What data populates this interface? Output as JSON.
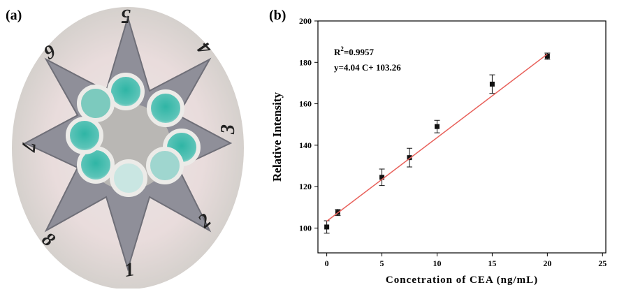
{
  "panel_labels": {
    "a": "(a)",
    "b": "(b)"
  },
  "photo": {
    "well_numbers": [
      "1",
      "2",
      "3",
      "4",
      "5",
      "6",
      "7",
      "8"
    ]
  },
  "chart_data": {
    "type": "scatter",
    "x_label": "Concetration of CEA (ng/mL)",
    "y_label": "Relative Intensity",
    "r_squared": {
      "symbol": "R",
      "superscript": "2",
      "value_text": "=0.9957"
    },
    "equation": "y=4.04 C+ 103.26",
    "x": [
      0,
      1,
      5,
      7.5,
      10,
      15,
      20
    ],
    "series": [
      {
        "color": "#111111",
        "values": [
          100.5,
          107.5,
          124.5,
          134,
          149,
          169.5,
          183
        ],
        "errors": [
          3,
          1.5,
          4,
          4.5,
          3,
          4.5,
          1.5
        ]
      },
      {
        "type": "line",
        "color": "#e8605a",
        "x": [
          0,
          20
        ],
        "values": [
          103.3,
          184
        ]
      }
    ],
    "xlim": [
      -0.8,
      25.3
    ],
    "ylim": [
      88,
      200
    ],
    "xticks": [
      0,
      5,
      10,
      15,
      20,
      25
    ],
    "yticks": [
      100,
      120,
      140,
      160,
      180,
      200
    ]
  }
}
